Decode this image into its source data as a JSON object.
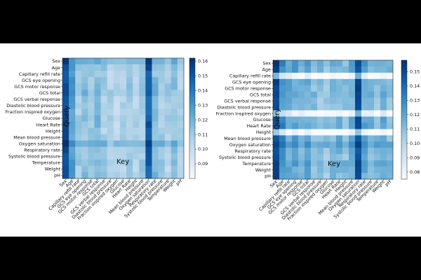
{
  "chart_data": [
    {
      "type": "heatmap",
      "xlabel": "Key",
      "ylabel": "Query",
      "variables": [
        "Sex",
        "Age",
        "Capillary refill rate",
        "GCS eye opening",
        "GCS motor response",
        "GCS total",
        "GCS verbal response",
        "Diastolic blood pressure",
        "Fraction inspired oxygen",
        "Glucose",
        "Heart Rate",
        "Height",
        "Mean blood pressure",
        "Oxygen saturation",
        "Respiratory rate",
        "Systolic blood pressure",
        "Temperature",
        "Weight",
        "pH"
      ],
      "colorbar": {
        "min": 0.08,
        "max": 0.162,
        "ticks": [
          0.09,
          0.1,
          0.11,
          0.12,
          0.13,
          0.14,
          0.15,
          0.16
        ],
        "colormap": "Blues"
      },
      "column_values": [
        0.155,
        0.128,
        0.112,
        0.115,
        0.112,
        0.118,
        0.11,
        0.108,
        0.105,
        0.108,
        0.11,
        0.108,
        0.112,
        0.15,
        0.118,
        0.11,
        0.108,
        0.115,
        0.108
      ],
      "row_offsets": [
        0.01,
        0.003,
        0.0,
        0.002,
        0.003,
        0.004,
        0.001,
        0.0,
        0.0,
        0.002,
        0.001,
        0.0,
        0.001,
        0.01,
        0.001,
        0.001,
        0.003,
        0.001,
        0.002
      ]
    },
    {
      "type": "heatmap",
      "xlabel": "Key",
      "ylabel": "Query",
      "variables": [
        "Sex",
        "Age",
        "Capillary refill rate",
        "GCS eye opening",
        "GCS motor response",
        "GCS total",
        "GCS verbal response",
        "Diastolic blood pressure",
        "Fraction inspired oxygen",
        "Glucose",
        "Heart Rate",
        "Height",
        "Mean blood pressure",
        "Oxygen saturation",
        "Respiratory rate",
        "Systolic blood pressure",
        "Temperature",
        "Weight",
        "pH"
      ],
      "colorbar": {
        "min": 0.075,
        "max": 0.158,
        "ticks": [
          0.08,
          0.09,
          0.1,
          0.11,
          0.12,
          0.13,
          0.14,
          0.15
        ],
        "colormap": "Blues"
      },
      "column_values": [
        0.15,
        0.128,
        0.118,
        0.12,
        0.115,
        0.118,
        0.112,
        0.11,
        0.108,
        0.112,
        0.115,
        0.11,
        0.118,
        0.15,
        0.12,
        0.115,
        0.112,
        0.118,
        0.11
      ],
      "row_offsets": [
        0.006,
        0.004,
        -0.035,
        0.003,
        0.002,
        0.003,
        0.001,
        0.0,
        -0.033,
        0.002,
        0.004,
        -0.038,
        0.004,
        0.009,
        0.002,
        0.001,
        0.006,
        0.003,
        0.002
      ]
    }
  ]
}
